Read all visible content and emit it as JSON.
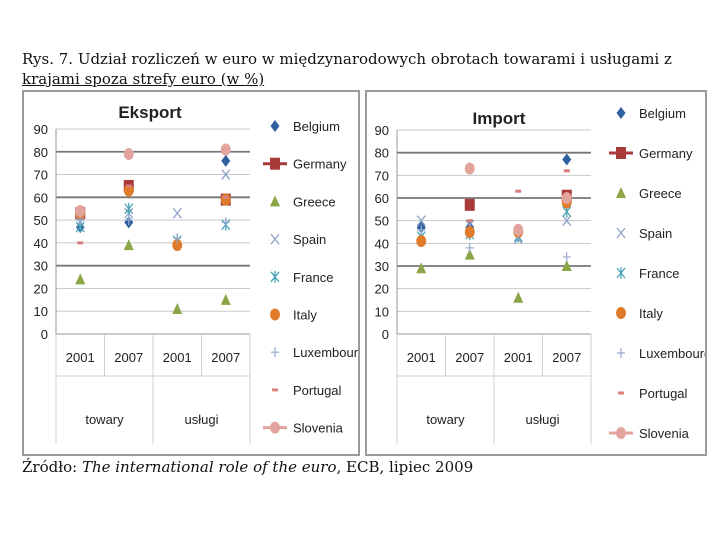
{
  "caption": {
    "line1": "Rys. 7. Udział rozliczeń w euro w międzynarodowych obrotach towarami i usługami z",
    "line2": "krajami spoza strefy euro (w %)",
    "source_prefix": "Źródło: ",
    "source_title": "The international role of the euro",
    "source_suffix": ", ECB, lipiec 2009"
  },
  "colors": {
    "Belgium": "#2e5f9e",
    "Germany": "#a83a3a",
    "Greece": "#8aa646",
    "Spain": "#8da0c8",
    "France": "#4aa3b8",
    "Italy": "#e07b2a",
    "Luxembourg": "#94a9cf",
    "Portugal": "#d9807c",
    "Slovenia": "#e2a49c",
    "grid": "#888888",
    "axis": "#9a9a9a"
  },
  "chart_data": [
    {
      "type": "scatter",
      "title": "Eksport",
      "ylim": [
        0,
        90
      ],
      "yticks": [
        0,
        10,
        20,
        30,
        40,
        50,
        60,
        70,
        80,
        90
      ],
      "categories": [
        "2001",
        "2007",
        "2001",
        "2007"
      ],
      "groups": [
        "towary",
        "usługi"
      ],
      "legend_position": "right",
      "series": [
        {
          "name": "Belgium",
          "marker": "diamond",
          "values": [
            47,
            49,
            null,
            76
          ]
        },
        {
          "name": "Germany",
          "marker": "square",
          "values": [
            53,
            65,
            null,
            59
          ]
        },
        {
          "name": "Greece",
          "marker": "triangle",
          "values": [
            24,
            39,
            11,
            15
          ]
        },
        {
          "name": "Spain",
          "marker": "x",
          "values": [
            49,
            53,
            53,
            70
          ]
        },
        {
          "name": "France",
          "marker": "star",
          "values": [
            47,
            55,
            41,
            48
          ]
        },
        {
          "name": "Italy",
          "marker": "circle",
          "values": [
            53,
            63,
            39,
            59
          ]
        },
        {
          "name": "Luxembourg",
          "marker": "plus",
          "values": [
            50,
            50,
            42,
            49
          ]
        },
        {
          "name": "Portugal",
          "marker": "dash",
          "values": [
            40,
            65,
            null,
            60
          ]
        },
        {
          "name": "Slovenia",
          "marker": "circle",
          "values": [
            54,
            79,
            null,
            81
          ]
        }
      ]
    },
    {
      "type": "scatter",
      "title": "Import",
      "ylim": [
        0,
        90
      ],
      "yticks": [
        0,
        10,
        20,
        30,
        40,
        50,
        60,
        70,
        80,
        90
      ],
      "categories": [
        "2001",
        "2007",
        "2001",
        "2007"
      ],
      "groups": [
        "towary",
        "usługi"
      ],
      "legend_position": "right",
      "series": [
        {
          "name": "Belgium",
          "marker": "diamond",
          "values": [
            47,
            47,
            null,
            77
          ]
        },
        {
          "name": "Germany",
          "marker": "square",
          "values": [
            null,
            57,
            null,
            61
          ]
        },
        {
          "name": "Greece",
          "marker": "triangle",
          "values": [
            29,
            35,
            16,
            30
          ]
        },
        {
          "name": "Spain",
          "marker": "x",
          "values": [
            50,
            48,
            42,
            50
          ]
        },
        {
          "name": "France",
          "marker": "star",
          "values": [
            43,
            44,
            43,
            54
          ]
        },
        {
          "name": "Italy",
          "marker": "circle",
          "values": [
            41,
            45,
            45,
            58
          ]
        },
        {
          "name": "Luxembourg",
          "marker": "plus",
          "values": [
            46,
            38,
            44,
            34
          ]
        },
        {
          "name": "Portugal",
          "marker": "dash",
          "values": [
            null,
            50,
            63,
            72
          ]
        },
        {
          "name": "Slovenia",
          "marker": "circle",
          "values": [
            null,
            73,
            46,
            60
          ]
        }
      ]
    }
  ]
}
